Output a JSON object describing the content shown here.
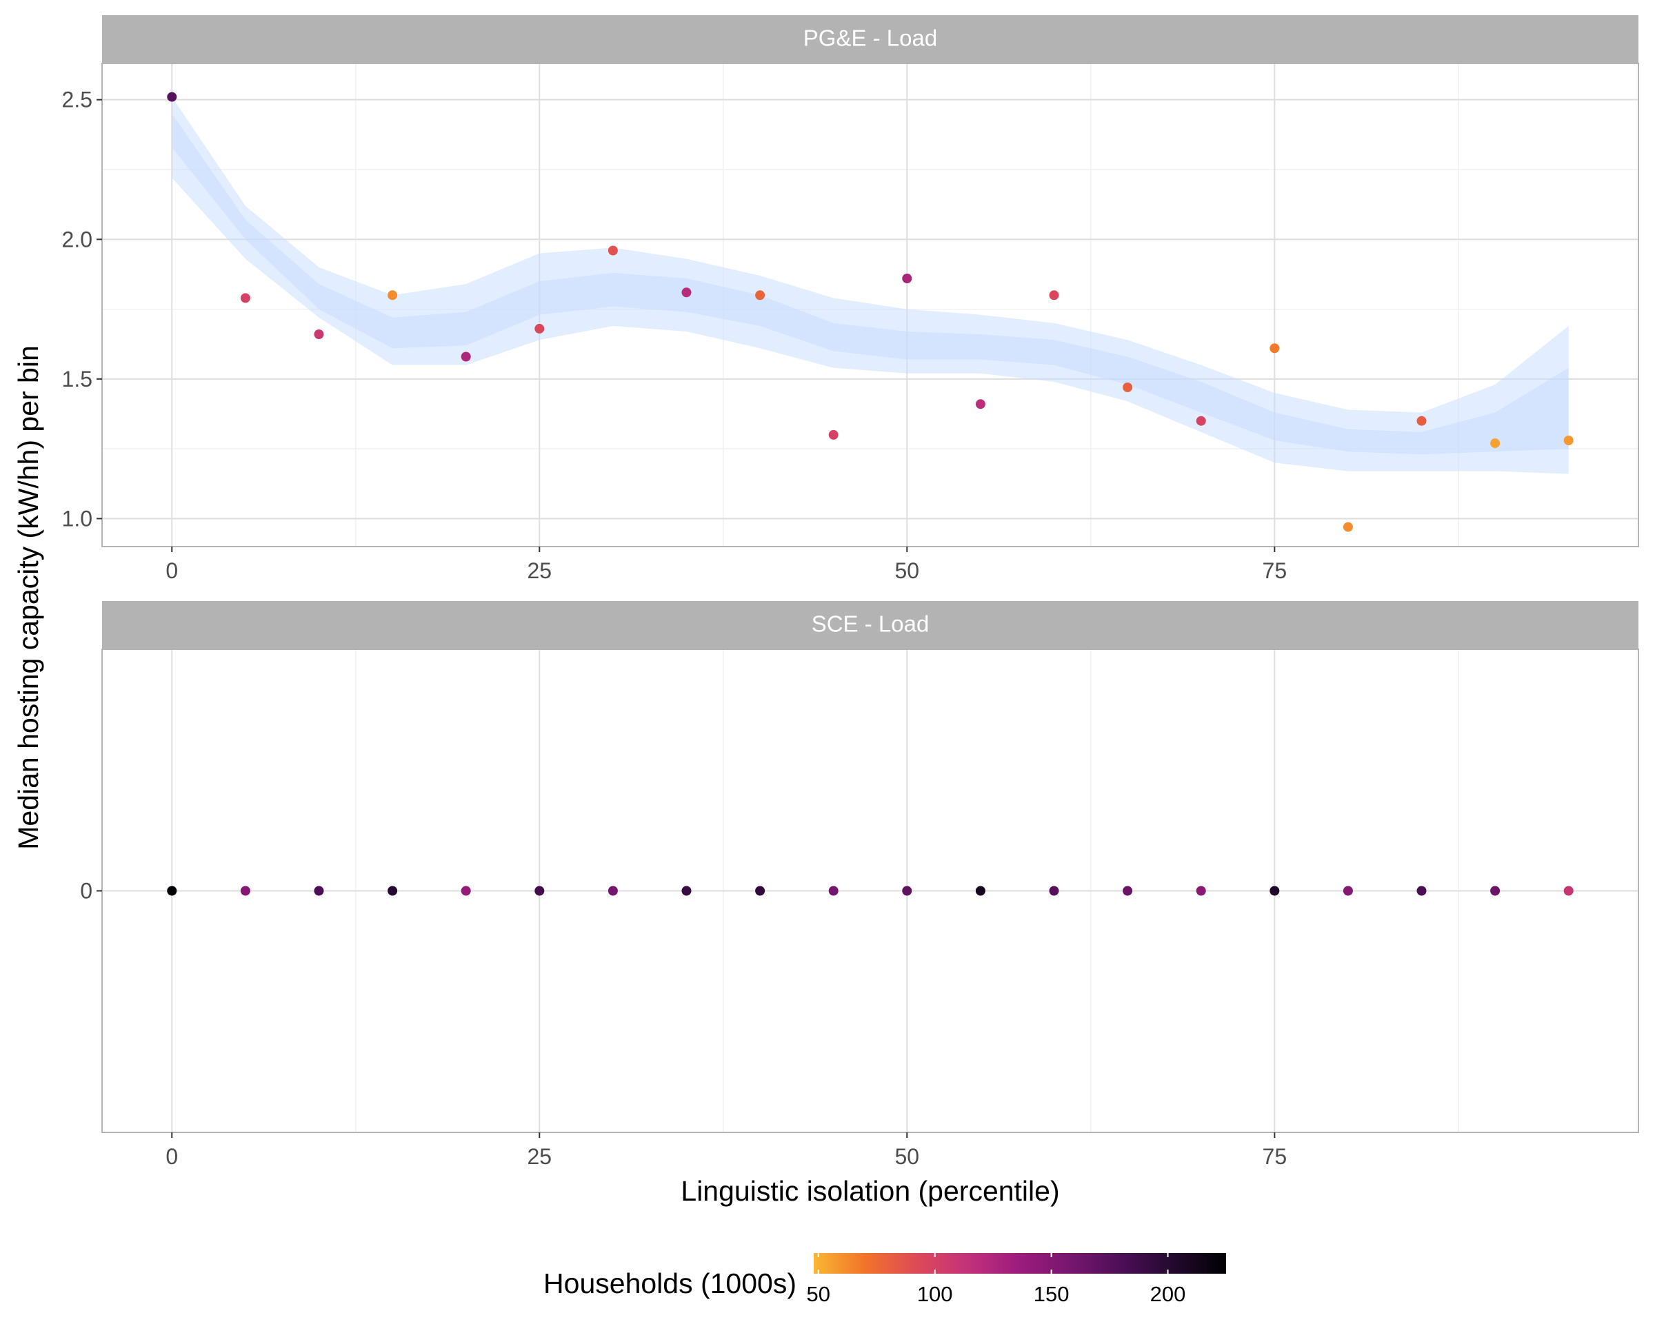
{
  "chart_data": {
    "type": "scatter",
    "xlabel": "Linguistic isolation (percentile)",
    "ylabel": "Median hosting capacity (kW/hh) per bin",
    "xlim": [
      -4.75,
      99.75
    ],
    "x_ticks": [
      0,
      25,
      50,
      75
    ],
    "x_tick_labels": [
      "0",
      "25",
      "50",
      "75"
    ],
    "legend": {
      "title": "Households (1000s)",
      "placement": "bottom",
      "range": [
        48,
        225
      ],
      "ticks": [
        50,
        100,
        150,
        200
      ],
      "tick_labels": [
        "50",
        "100",
        "150",
        "200"
      ],
      "colors": [
        "#F9B733",
        "#F1732A",
        "#DD4A58",
        "#C2317A",
        "#9B1C7D",
        "#76166E",
        "#4B0E56",
        "#22092C",
        "#000004"
      ]
    },
    "panels": [
      {
        "strip": "PG&E - Load",
        "ylim": [
          0.9,
          2.63
        ],
        "y_ticks": [
          1.0,
          1.5,
          2.0,
          2.5
        ],
        "y_tick_labels": [
          "1.0",
          "1.5",
          "2.0",
          "2.5"
        ],
        "band_color": "#C6DCFF",
        "points": [
          {
            "x": 0,
            "y": 2.51,
            "households": 175
          },
          {
            "x": 5,
            "y": 1.79,
            "households": 100
          },
          {
            "x": 10,
            "y": 1.66,
            "households": 108
          },
          {
            "x": 15,
            "y": 1.8,
            "households": 62
          },
          {
            "x": 20,
            "y": 1.58,
            "households": 125
          },
          {
            "x": 25,
            "y": 1.68,
            "households": 95
          },
          {
            "x": 30,
            "y": 1.96,
            "households": 88
          },
          {
            "x": 35,
            "y": 1.81,
            "households": 120
          },
          {
            "x": 40,
            "y": 1.8,
            "households": 78
          },
          {
            "x": 45,
            "y": 1.3,
            "households": 100
          },
          {
            "x": 50,
            "y": 1.86,
            "households": 128
          },
          {
            "x": 55,
            "y": 1.41,
            "households": 118
          },
          {
            "x": 60,
            "y": 1.8,
            "households": 95
          },
          {
            "x": 65,
            "y": 1.47,
            "households": 80
          },
          {
            "x": 70,
            "y": 1.35,
            "households": 98
          },
          {
            "x": 75,
            "y": 1.61,
            "households": 68
          },
          {
            "x": 80,
            "y": 0.97,
            "households": 62
          },
          {
            "x": 85,
            "y": 1.35,
            "households": 82
          },
          {
            "x": 90,
            "y": 1.27,
            "households": 55
          },
          {
            "x": 95,
            "y": 1.28,
            "households": 58
          }
        ],
        "smooth": {
          "x": [
            0,
            5,
            10,
            15,
            20,
            25,
            30,
            35,
            40,
            45,
            50,
            55,
            60,
            65,
            70,
            75,
            80,
            85,
            90,
            95
          ],
          "outer_lower": [
            2.22,
            1.93,
            1.72,
            1.55,
            1.55,
            1.64,
            1.69,
            1.67,
            1.61,
            1.54,
            1.52,
            1.52,
            1.49,
            1.42,
            1.31,
            1.2,
            1.17,
            1.17,
            1.17,
            1.16
          ],
          "outer_upper": [
            2.51,
            2.12,
            1.9,
            1.8,
            1.84,
            1.95,
            1.97,
            1.93,
            1.87,
            1.79,
            1.75,
            1.73,
            1.7,
            1.64,
            1.55,
            1.45,
            1.39,
            1.38,
            1.48,
            1.69
          ],
          "inner_lower": [
            2.33,
            2.0,
            1.75,
            1.61,
            1.62,
            1.73,
            1.76,
            1.74,
            1.69,
            1.6,
            1.57,
            1.57,
            1.55,
            1.48,
            1.38,
            1.28,
            1.24,
            1.23,
            1.24,
            1.25
          ],
          "inner_upper": [
            2.45,
            2.07,
            1.84,
            1.72,
            1.74,
            1.85,
            1.88,
            1.86,
            1.8,
            1.7,
            1.67,
            1.66,
            1.64,
            1.58,
            1.49,
            1.38,
            1.32,
            1.31,
            1.38,
            1.54
          ]
        }
      },
      {
        "strip": "SCE - Load",
        "ylim": [
          -1,
          1
        ],
        "y_ticks": [
          0
        ],
        "y_tick_labels": [
          "0"
        ],
        "points": [
          {
            "x": 0,
            "y": 0,
            "households": 225
          },
          {
            "x": 5,
            "y": 0,
            "households": 150
          },
          {
            "x": 10,
            "y": 0,
            "households": 180
          },
          {
            "x": 15,
            "y": 0,
            "households": 200
          },
          {
            "x": 20,
            "y": 0,
            "households": 140
          },
          {
            "x": 25,
            "y": 0,
            "households": 185
          },
          {
            "x": 30,
            "y": 0,
            "households": 160
          },
          {
            "x": 35,
            "y": 0,
            "households": 190
          },
          {
            "x": 40,
            "y": 0,
            "households": 195
          },
          {
            "x": 45,
            "y": 0,
            "households": 160
          },
          {
            "x": 50,
            "y": 0,
            "households": 170
          },
          {
            "x": 55,
            "y": 0,
            "households": 210
          },
          {
            "x": 60,
            "y": 0,
            "households": 175
          },
          {
            "x": 65,
            "y": 0,
            "households": 165
          },
          {
            "x": 70,
            "y": 0,
            "households": 148
          },
          {
            "x": 75,
            "y": 0,
            "households": 205
          },
          {
            "x": 80,
            "y": 0,
            "households": 150
          },
          {
            "x": 85,
            "y": 0,
            "households": 180
          },
          {
            "x": 90,
            "y": 0,
            "households": 165
          },
          {
            "x": 95,
            "y": 0,
            "households": 110
          }
        ]
      }
    ]
  }
}
